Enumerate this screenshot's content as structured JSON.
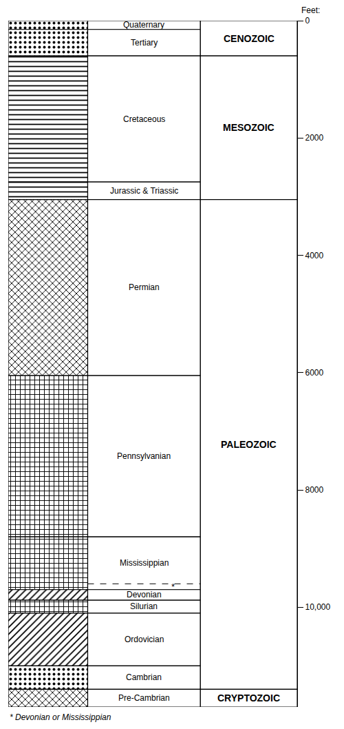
{
  "chart_data": {
    "type": "bar",
    "y_label": "Feet:",
    "ylim": [
      0,
      11700
    ],
    "yticks": [
      0,
      2000,
      4000,
      6000,
      8000,
      {
        "value": 10000,
        "label": "10,000"
      }
    ],
    "grid": false,
    "tick_labels": "y",
    "periods": [
      {
        "name": "Quaternary",
        "top": 0,
        "bottom": 150
      },
      {
        "name": "Tertiary",
        "top": 150,
        "bottom": 600
      },
      {
        "name": "Cretaceous",
        "top": 600,
        "bottom": 2750
      },
      {
        "name": "Jurassic & Triassic",
        "top": 2750,
        "bottom": 3050
      },
      {
        "name": "Permian",
        "top": 3050,
        "bottom": 6050
      },
      {
        "name": "Pennsylvanian",
        "top": 6050,
        "bottom": 8800
      },
      {
        "name": "Mississippian",
        "top": 8800,
        "bottom": 9700
      },
      {
        "name": "Devonian",
        "top": 9700,
        "bottom": 9880
      },
      {
        "name": "Silurian",
        "top": 9880,
        "bottom": 10100
      },
      {
        "name": "Ordovician",
        "top": 10100,
        "bottom": 11000
      },
      {
        "name": "Cambrian",
        "top": 11000,
        "bottom": 11400
      },
      {
        "name": "Pre-Cambrian",
        "top": 11400,
        "bottom": 11700
      }
    ],
    "eras": [
      {
        "name": "CENOZOIC",
        "top": 0,
        "bottom": 600
      },
      {
        "name": "MESOZOIC",
        "top": 600,
        "bottom": 3050
      },
      {
        "name": "PALEOZOIC",
        "top": 3050,
        "bottom": 11400
      },
      {
        "name": "CRYPTOZOIC",
        "top": 11400,
        "bottom": 11700
      }
    ],
    "uncertain": {
      "top": 9600,
      "bottom": 9700,
      "label": "*"
    },
    "footnote": "* Devonian or Mississippian"
  }
}
